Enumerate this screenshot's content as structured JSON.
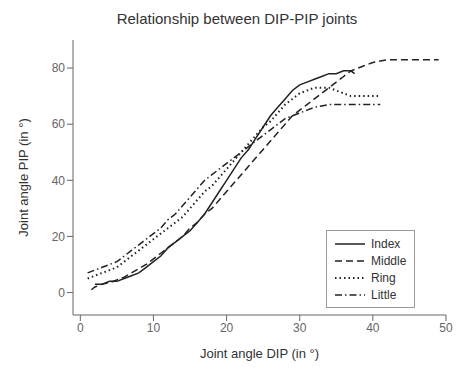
{
  "chart_data": {
    "type": "line",
    "title": "Relationship between DIP-PIP joints",
    "x_label": "Joint angle DIP (in °)",
    "y_label": "Joint angle PIP (in °)",
    "xlim": [
      -1,
      50
    ],
    "ylim": [
      -8,
      90
    ],
    "xticks": [
      0,
      10,
      20,
      30,
      40,
      50
    ],
    "yticks": [
      0,
      20,
      40,
      60,
      80
    ],
    "grid": false,
    "legend": "right",
    "series": [
      {
        "name": "Index",
        "color": "#222222",
        "line_style": "solid",
        "x": [
          2,
          3,
          4,
          5,
          6,
          7,
          8,
          9,
          10,
          11,
          12,
          13,
          14,
          15,
          16,
          17,
          18,
          19,
          20,
          21,
          22,
          23,
          24,
          25,
          26,
          27,
          28,
          29,
          30,
          31,
          32,
          33,
          34,
          35,
          36,
          37,
          37.5
        ],
        "values": [
          3,
          3,
          4,
          4,
          5,
          6,
          7,
          9,
          11,
          13,
          16,
          18,
          20,
          22,
          25,
          28,
          32,
          36,
          40,
          44,
          48,
          51,
          55,
          59,
          63,
          66,
          69,
          72,
          74,
          75,
          76,
          77,
          78,
          78,
          79,
          79,
          78
        ]
      },
      {
        "name": "Middle",
        "color": "#222222",
        "line_style": "dashed",
        "x": [
          1.5,
          2,
          3,
          4,
          5,
          6,
          7,
          8,
          9,
          10,
          11,
          12,
          13,
          14,
          15,
          16,
          17,
          18,
          19,
          20,
          21,
          22,
          23,
          24,
          25,
          26,
          27,
          28,
          29,
          30,
          31,
          32,
          33,
          34,
          35,
          36,
          37,
          38,
          39,
          40,
          41,
          42,
          43,
          44,
          45,
          46,
          47,
          48,
          49
        ],
        "values": [
          1,
          2,
          3,
          3.5,
          4.5,
          5.5,
          7,
          8.5,
          10,
          12,
          14,
          16,
          18,
          20,
          23,
          25,
          28,
          30,
          33,
          36,
          39,
          42,
          45,
          48,
          51,
          54,
          57,
          60,
          63,
          65,
          67,
          69,
          71,
          73,
          75,
          77,
          79,
          80,
          81,
          82,
          82.5,
          83,
          83,
          83,
          83,
          83,
          83,
          83,
          83
        ]
      },
      {
        "name": "Ring",
        "color": "#222222",
        "line_style": "dotted",
        "x": [
          1,
          2,
          3,
          4,
          5,
          6,
          7,
          8,
          9,
          10,
          11,
          12,
          13,
          14,
          15,
          16,
          17,
          18,
          19,
          20,
          21,
          22,
          23,
          24,
          25,
          26,
          27,
          28,
          29,
          30,
          31,
          32,
          33,
          34,
          35,
          36,
          37,
          38,
          39,
          40,
          41
        ],
        "values": [
          5,
          6,
          7,
          8,
          9,
          11,
          13,
          15,
          17,
          19,
          21,
          23,
          25,
          27,
          30,
          33,
          36,
          38,
          41,
          44,
          47,
          50,
          53,
          56,
          59,
          61,
          64,
          67,
          69,
          71,
          72,
          73,
          73,
          73,
          72,
          71,
          70,
          70,
          70,
          70,
          70
        ]
      },
      {
        "name": "Little",
        "color": "#222222",
        "line_style": "dashdot",
        "x": [
          1,
          2,
          3,
          4,
          5,
          6,
          7,
          8,
          9,
          10,
          11,
          12,
          13,
          14,
          15,
          16,
          17,
          18,
          19,
          20,
          21,
          22,
          23,
          24,
          25,
          26,
          27,
          28,
          29,
          30,
          31,
          32,
          33,
          34,
          35,
          36,
          37,
          38,
          39,
          40,
          41
        ],
        "values": [
          7,
          8,
          9,
          10,
          11,
          13,
          15,
          17,
          19,
          21,
          23,
          26,
          28,
          31,
          34,
          37,
          40,
          42,
          44,
          46,
          48,
          50,
          52,
          54,
          56,
          58,
          60,
          62,
          63,
          64,
          65,
          66,
          66.5,
          67,
          67,
          67,
          67,
          67,
          67,
          67,
          67
        ]
      }
    ]
  }
}
